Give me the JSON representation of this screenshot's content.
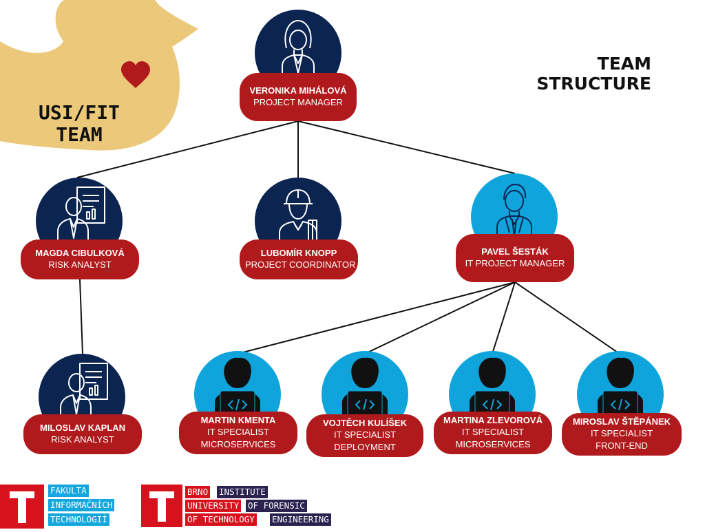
{
  "title": {
    "line1": "TEAM",
    "line2": "STRUCTURE"
  },
  "team": {
    "line1": "USI/FIT",
    "line2": "TEAM"
  },
  "colors": {
    "card": "#b11a1c",
    "management_circle": "#0b2450",
    "it_circle": "#0fa4dc",
    "duck": "#ecc97a",
    "heart": "#b11a1c"
  },
  "people": [
    {
      "id": "veronika",
      "name": "VERONIKA MIHÁLOVÁ",
      "role": [
        "PROJECT MANAGER"
      ],
      "icon": "businesswoman-icon"
    },
    {
      "id": "magda",
      "name": "MAGDA CIBULKOVÁ",
      "role": [
        "RISK ANALYST"
      ],
      "icon": "analyst-report-icon"
    },
    {
      "id": "lubomir",
      "name": "LUBOMÍR KNOPP",
      "role": [
        "PROJECT COORDINATOR"
      ],
      "icon": "engineer-helmet-icon"
    },
    {
      "id": "pavel",
      "name": "PAVEL ŠESTÁK",
      "role": [
        "IT PROJECT MANAGER"
      ],
      "icon": "businessman-icon"
    },
    {
      "id": "miloslav_k",
      "name": "MILOSLAV KAPLAN",
      "role": [
        "RISK ANALYST"
      ],
      "icon": "analyst-report-icon"
    },
    {
      "id": "martin",
      "name": "MARTIN KMENTA",
      "role": [
        "IT SPECIALIST",
        "MICROSERVICES"
      ],
      "icon": "developer-laptop-icon"
    },
    {
      "id": "vojtech",
      "name": "VOJTĚCH KULÍŠEK",
      "role": [
        "IT SPECIALIST",
        "DEPLOYMENT"
      ],
      "icon": "developer-laptop-icon"
    },
    {
      "id": "martina",
      "name": "MARTINA ZLEVOROVÁ",
      "role": [
        "IT SPECIALIST",
        "MICROSERVICES"
      ],
      "icon": "developer-laptop-icon"
    },
    {
      "id": "miroslav",
      "name": "MIROSLAV ŠTĚPÁNEK",
      "role": [
        "IT SPECIALIST",
        "FRONT-END"
      ],
      "icon": "developer-laptop-icon"
    }
  ],
  "logos": {
    "fit": {
      "lines": [
        "FAKULTA",
        "INFORMAČNÍCH",
        "TECHNOLOGIÍ"
      ]
    },
    "vut": {
      "col1": [
        "BRNO",
        "UNIVERSITY",
        "OF TECHNOLOGY"
      ],
      "col2": [
        "INSTITUTE",
        "OF FORENSIC",
        "ENGINEERING"
      ]
    }
  }
}
